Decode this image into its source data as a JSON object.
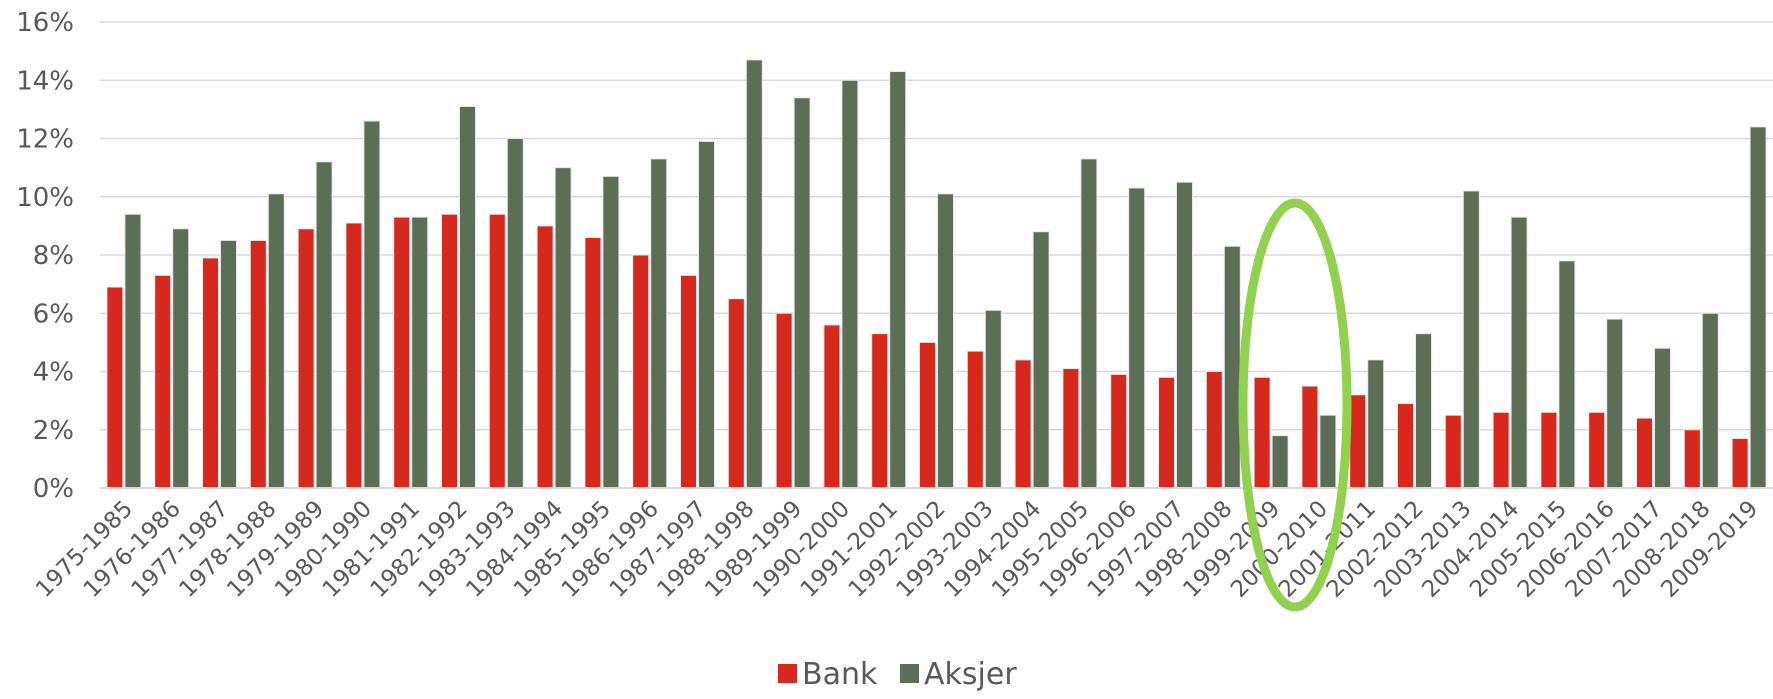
{
  "chart_data": {
    "type": "bar",
    "categories": [
      "1975-1985",
      "1976-1986",
      "1977-1987",
      "1978-1988",
      "1979-1989",
      "1980-1990",
      "1981-1991",
      "1982-1992",
      "1983-1993",
      "1984-1994",
      "1985-1995",
      "1986-1996",
      "1987-1997",
      "1988-1998",
      "1989-1999",
      "1990-2000",
      "1991-2001",
      "1992-2002",
      "1993-2003",
      "1994-2004",
      "1995-2005",
      "1996-2006",
      "1997-2007",
      "1998-2008",
      "1999-2009",
      "2000-2010",
      "2001-2011",
      "2002-2012",
      "2003-2013",
      "2004-2014",
      "2005-2015",
      "2006-2016",
      "2007-2017",
      "2008-2018",
      "2009-2019"
    ],
    "series": [
      {
        "name": "Bank",
        "color": "#d7281e",
        "values": [
          6.9,
          7.3,
          7.9,
          8.5,
          8.9,
          9.1,
          9.3,
          9.4,
          9.4,
          9.0,
          8.6,
          8.0,
          7.3,
          6.5,
          6.0,
          5.6,
          5.3,
          5.0,
          4.7,
          4.4,
          4.1,
          3.9,
          3.8,
          4.0,
          3.8,
          3.5,
          3.2,
          2.9,
          2.5,
          2.6,
          2.6,
          2.6,
          2.4,
          2.0,
          1.7
        ]
      },
      {
        "name": "Aksjer",
        "color": "#5d6e57",
        "values": [
          9.4,
          8.9,
          8.5,
          10.1,
          11.2,
          12.6,
          9.3,
          13.1,
          12.0,
          11.0,
          10.7,
          11.3,
          11.9,
          14.7,
          13.4,
          14.0,
          14.3,
          10.1,
          6.1,
          8.8,
          11.3,
          10.3,
          10.5,
          8.3,
          1.8,
          2.5,
          4.4,
          5.3,
          10.2,
          9.3,
          7.8,
          5.8,
          4.8,
          6.0,
          12.4
        ]
      }
    ],
    "y_ticks": [
      "0%",
      "2%",
      "4%",
      "6%",
      "8%",
      "10%",
      "12%",
      "14%",
      "16%"
    ],
    "ylim": [
      0,
      16
    ],
    "grid": true,
    "legend": "bottom-center",
    "annotation": {
      "shape": "ellipse",
      "color": "#92d050",
      "highlights": [
        "1999-2009",
        "2000-2010"
      ]
    }
  }
}
